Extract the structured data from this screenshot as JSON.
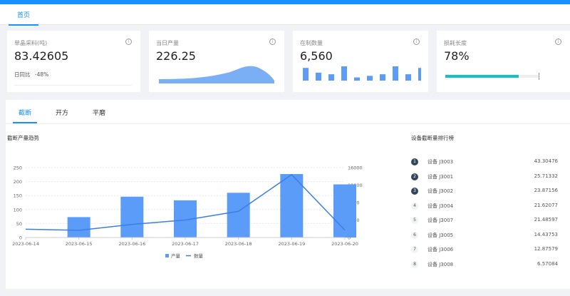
{
  "tabs": {
    "home_label": "首页"
  },
  "cards": [
    {
      "title": "单晶采料(吨)",
      "value": "83.42605",
      "footer_label": "日同比",
      "footer_value": "-48%"
    },
    {
      "title": "当日产量",
      "value": "226.25"
    },
    {
      "title": "在制数量",
      "value": "6,560",
      "bars": [
        8,
        5,
        4,
        9,
        2,
        3,
        4,
        9,
        4,
        8
      ]
    },
    {
      "title": "损耗长度",
      "value": "78%",
      "progress": 0.78
    }
  ],
  "main_tabs": [
    "截断",
    "开方",
    "平磨"
  ],
  "chart_title": "截断产量趋势",
  "ranking_title": "设备截断量排行榜",
  "ranking": [
    {
      "rank": "1",
      "name": "设备 J3003",
      "value": "43.30476"
    },
    {
      "rank": "2",
      "name": "设备 J3001",
      "value": "25.71332"
    },
    {
      "rank": "3",
      "name": "设备 J3002",
      "value": "23.87156"
    },
    {
      "rank": "4",
      "name": "设备 J3004",
      "value": "21.62077"
    },
    {
      "rank": "5",
      "name": "设备 J3007",
      "value": "21.48597"
    },
    {
      "rank": "6",
      "name": "设备 J3005",
      "value": "14.43753"
    },
    {
      "rank": "7",
      "name": "设备 J3006",
      "value": "12.87579"
    },
    {
      "rank": "8",
      "name": "设备 J3008",
      "value": "6.57084"
    }
  ],
  "colors": {
    "accent": "#1890ff",
    "bar": "#5b9cf8",
    "progress": "#13c2c2",
    "line": "#3a7ee8"
  },
  "chart_data": {
    "type": "bar",
    "categories": [
      "2023-06-14",
      "2023-06-15",
      "2023-06-16",
      "2023-06-17",
      "2023-06-18",
      "2023-06-19",
      "2023-06-20"
    ],
    "series": [
      {
        "name": "产量",
        "type": "bar",
        "values": [
          null,
          73,
          146,
          133,
          160,
          227,
          190
        ]
      },
      {
        "name": "数量",
        "type": "line",
        "axis": "right",
        "values": [
          1900,
          1650,
          3000,
          4000,
          6000,
          14400,
          1700
        ]
      }
    ],
    "y_left": {
      "ticks": [
        "0",
        "50",
        "100",
        "150",
        "200",
        "250"
      ],
      "ylim": [
        0,
        250
      ]
    },
    "y_right": {
      "ticks": [
        "0",
        "4000",
        "8000",
        "12000",
        "16000"
      ],
      "ylim": [
        0,
        16000
      ]
    },
    "legend": [
      "产量",
      "数量"
    ],
    "legend_position": "bottom"
  }
}
